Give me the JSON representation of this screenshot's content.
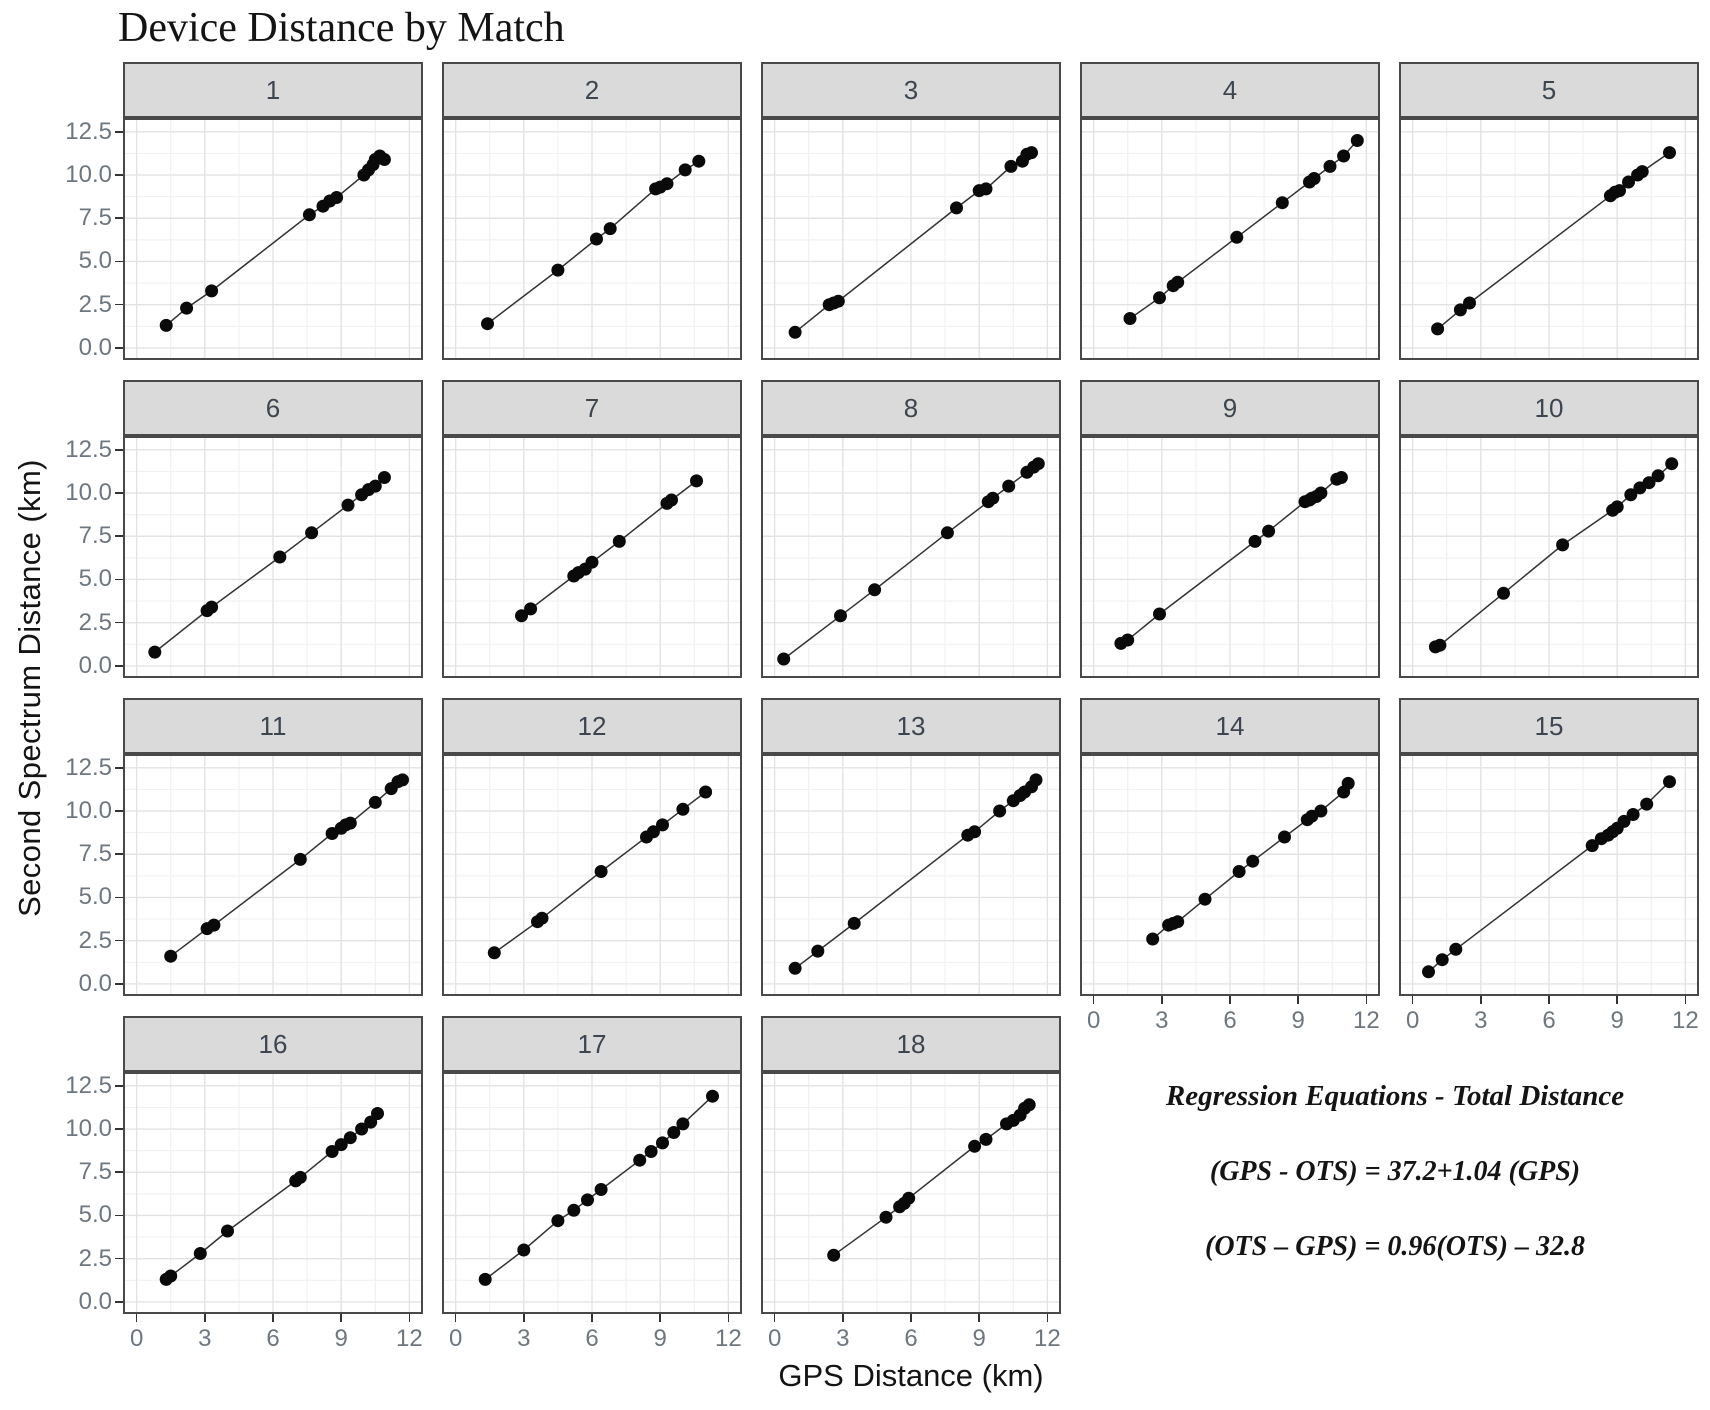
{
  "title": "Device Distance by Match",
  "axes": {
    "x_label": "GPS Distance (km)",
    "y_label": "Second Spectrum Distance (km)",
    "x_ticks": [
      "0",
      "3",
      "6",
      "9",
      "12"
    ],
    "y_ticks": [
      "0.0",
      "2.5",
      "5.0",
      "7.5",
      "10.0",
      "12.5"
    ]
  },
  "annotation": {
    "heading": "Regression Equations - Total Distance",
    "equation_1": "(GPS - OTS) = 37.2+1.04 (GPS)",
    "equation_2": "(OTS – GPS) = 0.96(OTS) – 32.8"
  },
  "colors": {
    "strip_bg": "#dadada",
    "strip_label": "#3d4650",
    "panel_border": "#494949",
    "panel_bg": "#ffffff",
    "grid_major": "#e3e3e6",
    "grid_minor": "#f1f1f3",
    "point": "#0a0a0a",
    "line": "#333333",
    "tick_label": "#6e7780",
    "tick_mark": "#333333",
    "text": "#141414"
  },
  "chart_data": {
    "type": "scatter",
    "title": "Device Distance by Match",
    "xlabel": "GPS Distance (km)",
    "ylabel": "Second Spectrum Distance (km)",
    "facet_variable": "Match",
    "xlim": [
      0,
      12
    ],
    "ylim": [
      0,
      12.5
    ],
    "x_tick_values": [
      0,
      3,
      6,
      9,
      12
    ],
    "y_tick_values": [
      0,
      2.5,
      5,
      7.5,
      10,
      12.5
    ],
    "x_minor_values": [
      1.5,
      4.5,
      7.5,
      10.5
    ],
    "y_minor_values": [
      1.25,
      3.75,
      6.25,
      8.75,
      11.25
    ],
    "grid": true,
    "legend": false,
    "facets": [
      {
        "label": "1",
        "points": [
          [
            1.3,
            1.3
          ],
          [
            2.2,
            2.3
          ],
          [
            3.3,
            3.3
          ],
          [
            7.6,
            7.7
          ],
          [
            8.2,
            8.2
          ],
          [
            8.5,
            8.5
          ],
          [
            8.8,
            8.7
          ],
          [
            10.0,
            10.0
          ],
          [
            10.2,
            10.3
          ],
          [
            10.4,
            10.6
          ],
          [
            10.5,
            10.9
          ],
          [
            10.7,
            11.1
          ],
          [
            10.9,
            10.9
          ]
        ]
      },
      {
        "label": "2",
        "points": [
          [
            1.4,
            1.4
          ],
          [
            4.5,
            4.5
          ],
          [
            6.2,
            6.3
          ],
          [
            6.8,
            6.9
          ],
          [
            8.8,
            9.2
          ],
          [
            9.0,
            9.3
          ],
          [
            9.3,
            9.5
          ],
          [
            10.1,
            10.3
          ],
          [
            10.7,
            10.8
          ]
        ]
      },
      {
        "label": "3",
        "points": [
          [
            0.9,
            0.9
          ],
          [
            2.4,
            2.5
          ],
          [
            2.6,
            2.6
          ],
          [
            2.8,
            2.7
          ],
          [
            8.0,
            8.1
          ],
          [
            9.0,
            9.1
          ],
          [
            9.3,
            9.2
          ],
          [
            10.4,
            10.5
          ],
          [
            10.9,
            10.8
          ],
          [
            11.1,
            11.2
          ],
          [
            11.3,
            11.3
          ]
        ]
      },
      {
        "label": "4",
        "points": [
          [
            1.6,
            1.7
          ],
          [
            2.9,
            2.9
          ],
          [
            3.5,
            3.6
          ],
          [
            3.7,
            3.8
          ],
          [
            6.3,
            6.4
          ],
          [
            8.3,
            8.4
          ],
          [
            9.5,
            9.6
          ],
          [
            9.7,
            9.8
          ],
          [
            10.4,
            10.5
          ],
          [
            11.0,
            11.1
          ],
          [
            11.6,
            12.0
          ]
        ]
      },
      {
        "label": "5",
        "points": [
          [
            1.1,
            1.1
          ],
          [
            2.1,
            2.2
          ],
          [
            2.5,
            2.6
          ],
          [
            8.7,
            8.8
          ],
          [
            8.9,
            9.0
          ],
          [
            9.1,
            9.1
          ],
          [
            9.5,
            9.6
          ],
          [
            9.9,
            10.0
          ],
          [
            10.1,
            10.2
          ],
          [
            11.3,
            11.3
          ]
        ]
      },
      {
        "label": "6",
        "points": [
          [
            0.8,
            0.8
          ],
          [
            3.1,
            3.2
          ],
          [
            3.3,
            3.4
          ],
          [
            6.3,
            6.3
          ],
          [
            7.7,
            7.7
          ],
          [
            9.3,
            9.3
          ],
          [
            9.9,
            9.9
          ],
          [
            10.2,
            10.2
          ],
          [
            10.5,
            10.4
          ],
          [
            10.9,
            10.9
          ]
        ]
      },
      {
        "label": "7",
        "points": [
          [
            2.9,
            2.9
          ],
          [
            3.3,
            3.3
          ],
          [
            5.2,
            5.2
          ],
          [
            5.4,
            5.4
          ],
          [
            5.7,
            5.6
          ],
          [
            6.0,
            6.0
          ],
          [
            7.2,
            7.2
          ],
          [
            9.3,
            9.4
          ],
          [
            9.5,
            9.6
          ],
          [
            10.6,
            10.7
          ]
        ]
      },
      {
        "label": "8",
        "points": [
          [
            0.4,
            0.4
          ],
          [
            2.9,
            2.9
          ],
          [
            4.4,
            4.4
          ],
          [
            7.6,
            7.7
          ],
          [
            9.4,
            9.5
          ],
          [
            9.6,
            9.7
          ],
          [
            10.3,
            10.4
          ],
          [
            11.1,
            11.2
          ],
          [
            11.4,
            11.5
          ],
          [
            11.6,
            11.7
          ]
        ]
      },
      {
        "label": "9",
        "points": [
          [
            1.2,
            1.3
          ],
          [
            1.5,
            1.5
          ],
          [
            2.9,
            3.0
          ],
          [
            7.1,
            7.2
          ],
          [
            7.7,
            7.8
          ],
          [
            9.3,
            9.5
          ],
          [
            9.5,
            9.6
          ],
          [
            9.6,
            9.7
          ],
          [
            9.8,
            9.8
          ],
          [
            10.0,
            10.0
          ],
          [
            10.7,
            10.8
          ],
          [
            10.9,
            10.9
          ]
        ]
      },
      {
        "label": "10",
        "points": [
          [
            1.0,
            1.1
          ],
          [
            1.2,
            1.2
          ],
          [
            4.0,
            4.2
          ],
          [
            6.6,
            7.0
          ],
          [
            8.8,
            9.0
          ],
          [
            9.0,
            9.2
          ],
          [
            9.6,
            9.9
          ],
          [
            10.0,
            10.3
          ],
          [
            10.4,
            10.6
          ],
          [
            10.8,
            11.0
          ],
          [
            11.4,
            11.7
          ]
        ]
      },
      {
        "label": "11",
        "points": [
          [
            1.5,
            1.6
          ],
          [
            3.1,
            3.2
          ],
          [
            3.4,
            3.4
          ],
          [
            7.2,
            7.2
          ],
          [
            8.6,
            8.7
          ],
          [
            9.0,
            9.0
          ],
          [
            9.2,
            9.2
          ],
          [
            9.4,
            9.3
          ],
          [
            10.5,
            10.5
          ],
          [
            11.2,
            11.3
          ],
          [
            11.5,
            11.7
          ],
          [
            11.7,
            11.8
          ]
        ]
      },
      {
        "label": "12",
        "points": [
          [
            1.7,
            1.8
          ],
          [
            3.6,
            3.6
          ],
          [
            3.8,
            3.8
          ],
          [
            6.4,
            6.5
          ],
          [
            8.4,
            8.5
          ],
          [
            8.7,
            8.8
          ],
          [
            9.1,
            9.2
          ],
          [
            10.0,
            10.1
          ],
          [
            11.0,
            11.1
          ]
        ]
      },
      {
        "label": "13",
        "points": [
          [
            0.9,
            0.9
          ],
          [
            1.9,
            1.9
          ],
          [
            3.5,
            3.5
          ],
          [
            8.5,
            8.6
          ],
          [
            8.8,
            8.8
          ],
          [
            9.9,
            10.0
          ],
          [
            10.5,
            10.6
          ],
          [
            10.8,
            10.9
          ],
          [
            11.0,
            11.1
          ],
          [
            11.3,
            11.4
          ],
          [
            11.5,
            11.8
          ]
        ]
      },
      {
        "label": "14",
        "points": [
          [
            2.6,
            2.6
          ],
          [
            3.3,
            3.4
          ],
          [
            3.5,
            3.5
          ],
          [
            3.7,
            3.6
          ],
          [
            4.9,
            4.9
          ],
          [
            6.4,
            6.5
          ],
          [
            7.0,
            7.1
          ],
          [
            8.4,
            8.5
          ],
          [
            9.4,
            9.5
          ],
          [
            9.6,
            9.7
          ],
          [
            10.0,
            10.0
          ],
          [
            11.0,
            11.1
          ],
          [
            11.2,
            11.6
          ]
        ]
      },
      {
        "label": "15",
        "points": [
          [
            0.7,
            0.7
          ],
          [
            1.3,
            1.4
          ],
          [
            1.9,
            2.0
          ],
          [
            7.9,
            8.0
          ],
          [
            8.3,
            8.4
          ],
          [
            8.6,
            8.6
          ],
          [
            8.8,
            8.8
          ],
          [
            9.0,
            9.0
          ],
          [
            9.3,
            9.4
          ],
          [
            9.7,
            9.8
          ],
          [
            10.3,
            10.4
          ],
          [
            11.3,
            11.7
          ]
        ]
      },
      {
        "label": "16",
        "points": [
          [
            1.3,
            1.3
          ],
          [
            1.5,
            1.5
          ],
          [
            2.8,
            2.8
          ],
          [
            4.0,
            4.1
          ],
          [
            7.0,
            7.0
          ],
          [
            7.2,
            7.2
          ],
          [
            8.6,
            8.7
          ],
          [
            9.0,
            9.1
          ],
          [
            9.4,
            9.5
          ],
          [
            9.9,
            10.0
          ],
          [
            10.3,
            10.4
          ],
          [
            10.6,
            10.9
          ]
        ]
      },
      {
        "label": "17",
        "points": [
          [
            1.3,
            1.3
          ],
          [
            3.0,
            3.0
          ],
          [
            4.5,
            4.7
          ],
          [
            5.2,
            5.3
          ],
          [
            5.8,
            5.9
          ],
          [
            6.4,
            6.5
          ],
          [
            8.1,
            8.2
          ],
          [
            8.6,
            8.7
          ],
          [
            9.1,
            9.2
          ],
          [
            9.6,
            9.8
          ],
          [
            10.0,
            10.3
          ],
          [
            11.3,
            11.9
          ]
        ]
      },
      {
        "label": "18",
        "points": [
          [
            2.6,
            2.7
          ],
          [
            4.9,
            4.9
          ],
          [
            5.5,
            5.5
          ],
          [
            5.7,
            5.7
          ],
          [
            5.9,
            6.0
          ],
          [
            8.8,
            9.0
          ],
          [
            9.3,
            9.4
          ],
          [
            10.2,
            10.3
          ],
          [
            10.5,
            10.5
          ],
          [
            10.8,
            10.8
          ],
          [
            11.0,
            11.2
          ],
          [
            11.2,
            11.4
          ]
        ]
      }
    ]
  }
}
